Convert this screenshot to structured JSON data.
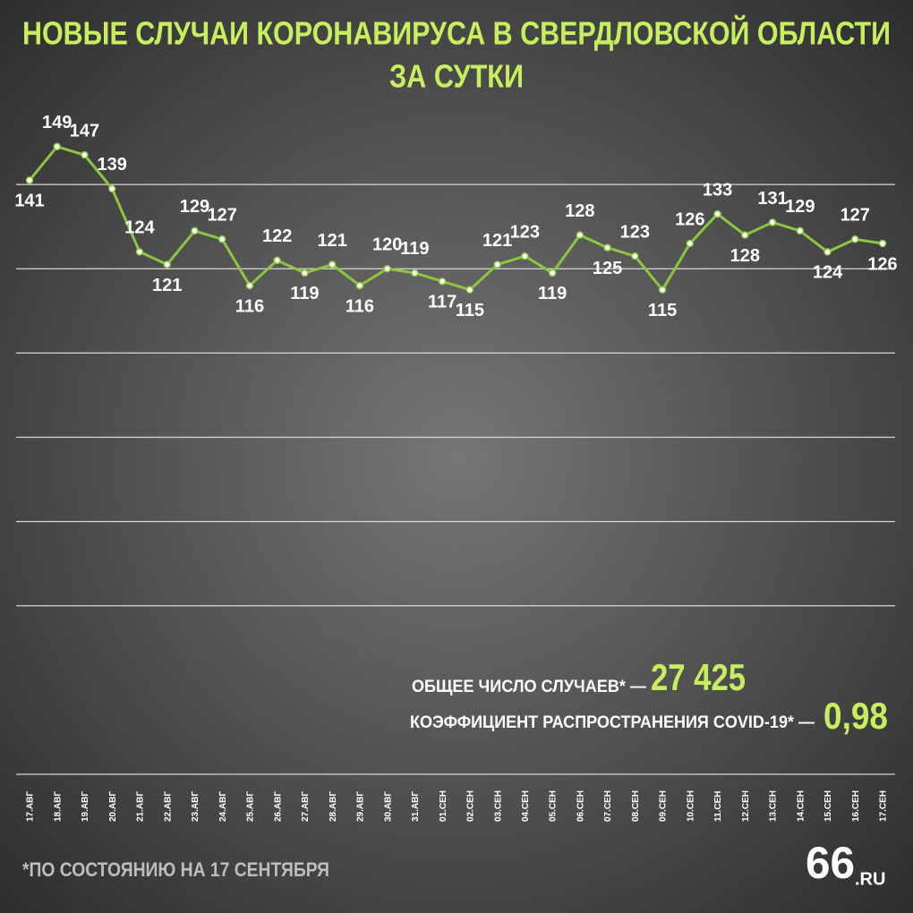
{
  "chart_data": {
    "type": "line",
    "title": "НОВЫЕ СЛУЧАИ КОРОНАВИРУСА В СВЕРДЛОВСКОЙ ОБЛАСТИ",
    "subtitle": "ЗА СУТКИ",
    "categories": [
      "17.АВГ",
      "18.АВГ",
      "19.АВГ",
      "20.АВГ",
      "21.АВГ",
      "22.АВГ",
      "23.АВГ",
      "24.АВГ",
      "25.АВГ",
      "26.АВГ",
      "27.АВГ",
      "28.АВГ",
      "29.АВГ",
      "30.АВГ",
      "31.АВГ",
      "01.СЕН",
      "02.СЕН",
      "03.СЕН",
      "04.СЕН",
      "05.СЕН",
      "06.СЕН",
      "07.СЕН",
      "08.СЕН",
      "09.СЕН",
      "10.СЕН",
      "11.СЕН",
      "12.СЕН",
      "13.СЕН",
      "14.СЕН",
      "15.СЕН",
      "16.СЕН",
      "17.СЕН"
    ],
    "values": [
      141,
      149,
      147,
      139,
      124,
      121,
      129,
      127,
      116,
      122,
      119,
      121,
      116,
      120,
      119,
      117,
      115,
      121,
      123,
      119,
      128,
      125,
      123,
      115,
      126,
      133,
      128,
      131,
      129,
      124,
      127,
      126
    ],
    "color": "#8cc63f",
    "ylim": [
      0,
      160
    ],
    "yticks": [
      40,
      60,
      80,
      100,
      120,
      140
    ],
    "grid": true,
    "annotations": {
      "total_label": "ОБЩЕЕ ЧИСЛО СЛУЧАЕВ* —",
      "total_value": "27 425",
      "r_label": "КОЭФФИЦИЕНТ РАСПРОСТРАНЕНИЯ COVID-19* —",
      "r_value": "0,98",
      "footnote": "*ПО СОСТОЯНИЮ НА 17 СЕНТЯБРЯ",
      "logo_number": "66",
      "logo_domain": ".RU"
    }
  }
}
